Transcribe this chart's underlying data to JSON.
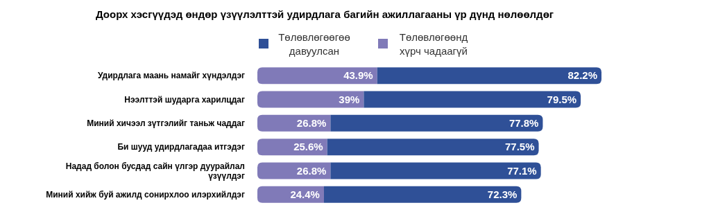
{
  "chart_data": {
    "type": "bar",
    "orientation": "horizontal",
    "stacked": true,
    "title": "Доорх хэсгүүдэд өндөр үзүүлэлттэй удирдлага багийн ажиллагааны үр дүнд нөлөөлдөг",
    "categories": [
      "Удирдлага маань намайг хүндэлдэг",
      "Нээлттэй шударга харилцдаг",
      "Миний хичээл зүтгэлийг таньж чаддаг",
      "Би шууд удирдлагадаа итгэдэг",
      "Надад болон бусдад сайн үлгэр дуурайлал үзүүлдэг",
      "Миний хийж буй ажилд сонирхлоо илэрхийлдэг"
    ],
    "series": [
      {
        "name": "Төлөвлөгөөнд хүрч чадаагүй",
        "color": "#807ab8",
        "values": [
          43.9,
          39,
          26.8,
          25.6,
          26.8,
          24.4
        ],
        "value_labels": [
          "43.9%",
          "39%",
          "26.8%",
          "25.6%",
          "26.8%",
          "24.4%"
        ]
      },
      {
        "name": "Төлөвлөгөөгөө давуулсан",
        "color": "#2f5097",
        "values": [
          82.2,
          79.5,
          77.8,
          77.5,
          77.1,
          72.3
        ],
        "value_labels": [
          "82.2%",
          "79.5%",
          "77.8%",
          "77.5%",
          "77.1%",
          "72.3%"
        ]
      }
    ],
    "legend": "top"
  }
}
